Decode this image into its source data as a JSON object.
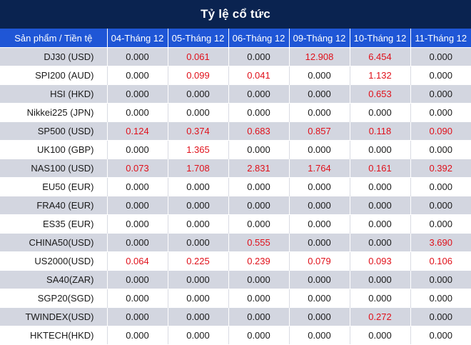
{
  "title": "Tỷ lệ cổ tức",
  "headers": [
    "Sản phẩm / Tiền tệ",
    "04-Tháng 12",
    "05-Tháng 12",
    "06-Tháng 12",
    "09-Tháng 12",
    "10-Tháng 12",
    "11-Tháng 12"
  ],
  "highlight_color": "#e0101a",
  "rows": [
    {
      "product": "DJ30 (USD)",
      "values": [
        "0.000",
        "0.061",
        "0.000",
        "12.908",
        "6.454",
        "0.000"
      ]
    },
    {
      "product": "SPI200 (AUD)",
      "values": [
        "0.000",
        "0.099",
        "0.041",
        "0.000",
        "1.132",
        "0.000"
      ]
    },
    {
      "product": "HSI (HKD)",
      "values": [
        "0.000",
        "0.000",
        "0.000",
        "0.000",
        "0.653",
        "0.000"
      ]
    },
    {
      "product": "Nikkei225 (JPN)",
      "values": [
        "0.000",
        "0.000",
        "0.000",
        "0.000",
        "0.000",
        "0.000"
      ]
    },
    {
      "product": "SP500 (USD)",
      "values": [
        "0.124",
        "0.374",
        "0.683",
        "0.857",
        "0.118",
        "0.090"
      ]
    },
    {
      "product": "UK100 (GBP)",
      "values": [
        "0.000",
        "1.365",
        "0.000",
        "0.000",
        "0.000",
        "0.000"
      ]
    },
    {
      "product": "NAS100 (USD)",
      "values": [
        "0.073",
        "1.708",
        "2.831",
        "1.764",
        "0.161",
        "0.392"
      ]
    },
    {
      "product": "EU50 (EUR)",
      "values": [
        "0.000",
        "0.000",
        "0.000",
        "0.000",
        "0.000",
        "0.000"
      ]
    },
    {
      "product": "FRA40 (EUR)",
      "values": [
        "0.000",
        "0.000",
        "0.000",
        "0.000",
        "0.000",
        "0.000"
      ]
    },
    {
      "product": "ES35 (EUR)",
      "values": [
        "0.000",
        "0.000",
        "0.000",
        "0.000",
        "0.000",
        "0.000"
      ]
    },
    {
      "product": "CHINA50(USD)",
      "values": [
        "0.000",
        "0.000",
        "0.555",
        "0.000",
        "0.000",
        "3.690"
      ]
    },
    {
      "product": "US2000(USD)",
      "values": [
        "0.064",
        "0.225",
        "0.239",
        "0.079",
        "0.093",
        "0.106"
      ]
    },
    {
      "product": "SA40(ZAR)",
      "values": [
        "0.000",
        "0.000",
        "0.000",
        "0.000",
        "0.000",
        "0.000"
      ]
    },
    {
      "product": "SGP20(SGD)",
      "values": [
        "0.000",
        "0.000",
        "0.000",
        "0.000",
        "0.000",
        "0.000"
      ]
    },
    {
      "product": "TWINDEX(USD)",
      "values": [
        "0.000",
        "0.000",
        "0.000",
        "0.000",
        "0.272",
        "0.000"
      ]
    },
    {
      "product": "HKTECH(HKD)",
      "values": [
        "0.000",
        "0.000",
        "0.000",
        "0.000",
        "0.000",
        "0.000"
      ]
    }
  ]
}
